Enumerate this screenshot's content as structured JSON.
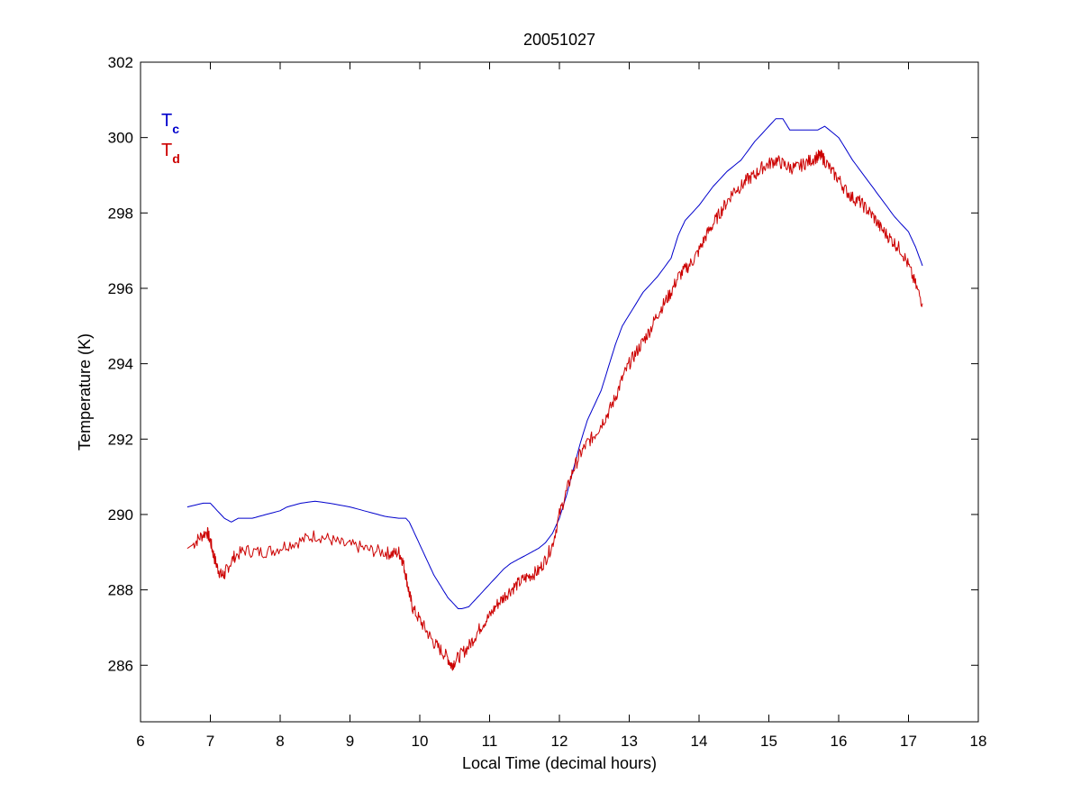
{
  "chart_data": {
    "type": "line",
    "title": "20051027",
    "xlabel": "Local Time (decimal hours)",
    "ylabel": "Temperature (K)",
    "xlim": [
      6,
      18
    ],
    "ylim": [
      284.5,
      302
    ],
    "xticks": [
      6,
      7,
      8,
      9,
      10,
      11,
      12,
      13,
      14,
      15,
      16,
      17,
      18
    ],
    "yticks": [
      286,
      288,
      290,
      292,
      294,
      296,
      298,
      300,
      302
    ],
    "grid": false,
    "legend_position": "top-left",
    "series": [
      {
        "name": "T",
        "name_sub": "c",
        "color": "#0000cc",
        "x": [
          6.67,
          6.9,
          7.0,
          7.1,
          7.2,
          7.3,
          7.4,
          7.6,
          7.8,
          8.0,
          8.1,
          8.3,
          8.5,
          8.7,
          9.0,
          9.2,
          9.4,
          9.5,
          9.7,
          9.75,
          9.8,
          9.85,
          9.9,
          10.0,
          10.1,
          10.2,
          10.3,
          10.4,
          10.5,
          10.55,
          10.6,
          10.7,
          10.8,
          10.9,
          11.0,
          11.1,
          11.2,
          11.3,
          11.4,
          11.5,
          11.6,
          11.7,
          11.8,
          11.9,
          12.0,
          12.1,
          12.2,
          12.3,
          12.4,
          12.5,
          12.6,
          12.7,
          12.8,
          12.9,
          13.0,
          13.2,
          13.4,
          13.6,
          13.7,
          13.8,
          14.0,
          14.2,
          14.4,
          14.6,
          14.8,
          15.0,
          15.1,
          15.2,
          15.3,
          15.5,
          15.7,
          15.8,
          16.0,
          16.2,
          16.4,
          16.6,
          16.8,
          17.0,
          17.1,
          17.2
        ],
        "values": [
          290.2,
          290.3,
          290.3,
          290.1,
          289.9,
          289.8,
          289.9,
          289.9,
          290.0,
          290.1,
          290.2,
          290.3,
          290.35,
          290.3,
          290.2,
          290.1,
          290.0,
          289.95,
          289.9,
          289.9,
          289.9,
          289.8,
          289.6,
          289.2,
          288.8,
          288.4,
          288.1,
          287.8,
          287.6,
          287.5,
          287.5,
          287.55,
          287.75,
          287.95,
          288.15,
          288.35,
          288.55,
          288.7,
          288.8,
          288.9,
          289.0,
          289.1,
          289.25,
          289.5,
          289.9,
          290.5,
          291.2,
          291.9,
          292.5,
          292.9,
          293.3,
          293.9,
          294.5,
          295.0,
          295.3,
          295.9,
          296.3,
          296.8,
          297.4,
          297.8,
          298.2,
          298.7,
          299.1,
          299.4,
          299.9,
          300.3,
          300.5,
          300.5,
          300.2,
          300.2,
          300.2,
          300.3,
          300.0,
          299.4,
          298.9,
          298.4,
          297.9,
          297.5,
          297.1,
          296.6
        ]
      },
      {
        "name": "T",
        "name_sub": "d",
        "color": "#cc0000",
        "x": [
          6.67,
          6.75,
          6.85,
          6.95,
          7.0,
          7.05,
          7.1,
          7.15,
          7.2,
          7.25,
          7.35,
          7.5,
          7.7,
          7.9,
          8.1,
          8.3,
          8.5,
          8.7,
          8.9,
          9.1,
          9.3,
          9.5,
          9.6,
          9.7,
          9.75,
          9.8,
          9.85,
          9.9,
          10.0,
          10.1,
          10.2,
          10.3,
          10.4,
          10.45,
          10.5,
          10.6,
          10.7,
          10.8,
          10.9,
          11.0,
          11.1,
          11.2,
          11.3,
          11.4,
          11.5,
          11.6,
          11.7,
          11.8,
          11.9,
          12.0,
          12.1,
          12.2,
          12.3,
          12.4,
          12.5,
          12.6,
          12.7,
          12.8,
          12.9,
          13.0,
          13.1,
          13.2,
          13.3,
          13.4,
          13.5,
          13.6,
          13.7,
          13.8,
          13.9,
          14.0,
          14.1,
          14.2,
          14.3,
          14.4,
          14.5,
          14.6,
          14.7,
          14.8,
          14.9,
          15.0,
          15.1,
          15.2,
          15.3,
          15.4,
          15.5,
          15.6,
          15.7,
          15.75,
          15.8,
          15.9,
          16.0,
          16.1,
          16.2,
          16.3,
          16.4,
          16.5,
          16.6,
          16.7,
          16.8,
          16.9,
          17.0,
          17.1,
          17.2
        ],
        "values": [
          289.1,
          289.2,
          289.4,
          289.55,
          289.3,
          288.9,
          288.6,
          288.4,
          288.4,
          288.6,
          288.9,
          289.05,
          289.0,
          289.05,
          289.2,
          289.3,
          289.45,
          289.35,
          289.2,
          289.15,
          289.05,
          289.0,
          288.95,
          289.0,
          288.8,
          288.4,
          287.9,
          287.5,
          287.2,
          286.9,
          286.6,
          286.4,
          286.2,
          286.0,
          286.1,
          286.3,
          286.5,
          286.8,
          287.1,
          287.3,
          287.6,
          287.8,
          288.0,
          288.15,
          288.3,
          288.4,
          288.5,
          288.8,
          289.2,
          290.0,
          290.6,
          291.2,
          291.6,
          291.9,
          292.1,
          292.4,
          292.7,
          293.1,
          293.6,
          294.0,
          294.3,
          294.6,
          294.9,
          295.3,
          295.6,
          295.9,
          296.3,
          296.5,
          296.7,
          297.0,
          297.4,
          297.7,
          298.0,
          298.3,
          298.6,
          298.7,
          298.9,
          299.0,
          299.2,
          299.3,
          299.4,
          299.3,
          299.2,
          299.2,
          299.3,
          299.4,
          299.5,
          299.5,
          299.4,
          299.1,
          298.9,
          298.6,
          298.4,
          298.3,
          298.1,
          297.9,
          297.6,
          297.4,
          297.2,
          297.0,
          296.6,
          296.1,
          295.6
        ]
      }
    ]
  }
}
